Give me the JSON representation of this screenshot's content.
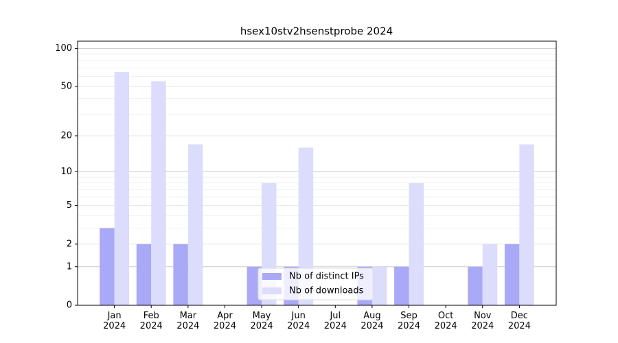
{
  "chart_data": {
    "type": "bar",
    "title": "hsex10stv2hsenstprobe 2024",
    "categories": [
      "Jan 2024",
      "Feb 2024",
      "Mar 2024",
      "Apr 2024",
      "May 2024",
      "Jun 2024",
      "Jul 2024",
      "Aug 2024",
      "Sep 2024",
      "Oct 2024",
      "Nov 2024",
      "Dec 2024"
    ],
    "series": [
      {
        "name": "Nb of distinct IPs",
        "color": "#a9a9f7",
        "values": [
          3,
          2,
          2,
          0,
          1,
          1,
          0,
          1,
          1,
          0,
          1,
          2
        ]
      },
      {
        "name": "Nb of downloads",
        "color": "#dcdcfc",
        "values": [
          65,
          55,
          17,
          0,
          8,
          16,
          0,
          1,
          8,
          0,
          2,
          17
        ]
      }
    ],
    "yscale": "log1p",
    "ylim": [
      0,
      114
    ],
    "yticks": [
      0,
      1,
      2,
      5,
      10,
      20,
      50,
      100
    ],
    "minor_yticks": [
      3,
      4,
      6,
      7,
      8,
      9,
      30,
      40,
      60,
      70,
      80,
      90
    ],
    "grid": true,
    "legend": "lower center"
  }
}
